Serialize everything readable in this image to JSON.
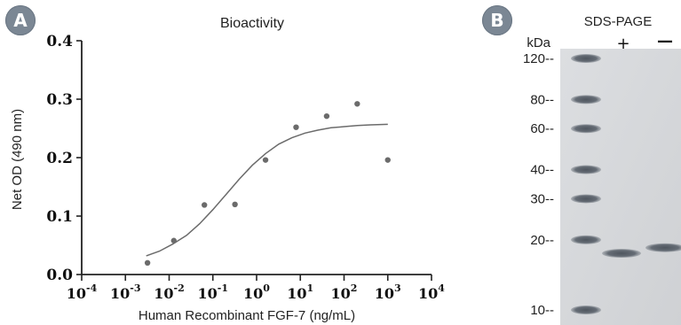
{
  "panels": {
    "a_label": "A",
    "b_label": "B"
  },
  "chart_data": [
    {
      "type": "scatter",
      "title": "Bioactivity",
      "xlabel": "Human Recombinant FGF-7 (ng/mL)",
      "ylabel": "Net OD (490 nm)",
      "xscale": "log",
      "xlim": [
        0.0001,
        10000
      ],
      "ylim": [
        0,
        0.4
      ],
      "x_ticks": [
        {
          "exp": "-4",
          "value": 0.0001
        },
        {
          "exp": "-3",
          "value": 0.001
        },
        {
          "exp": "-2",
          "value": 0.01
        },
        {
          "exp": "-1",
          "value": 0.1
        },
        {
          "exp": "0",
          "value": 1
        },
        {
          "exp": "1",
          "value": 10
        },
        {
          "exp": "2",
          "value": 100
        },
        {
          "exp": "3",
          "value": 1000
        },
        {
          "exp": "4",
          "value": 10000
        }
      ],
      "x_tick_base": "10",
      "y_ticks": [
        "0.0",
        "0.1",
        "0.2",
        "0.3",
        "0.4"
      ],
      "grid": false,
      "points": [
        {
          "x": 0.0032,
          "y": 0.02
        },
        {
          "x": 0.0128,
          "y": 0.058
        },
        {
          "x": 0.064,
          "y": 0.119
        },
        {
          "x": 0.32,
          "y": 0.12
        },
        {
          "x": 1.6,
          "y": 0.196
        },
        {
          "x": 8,
          "y": 0.252
        },
        {
          "x": 40,
          "y": 0.271
        },
        {
          "x": 200,
          "y": 0.292
        },
        {
          "x": 1000,
          "y": 0.196
        }
      ],
      "fit_curve": {
        "x": [
          0.003,
          0.006,
          0.012,
          0.025,
          0.05,
          0.1,
          0.2,
          0.4,
          0.8,
          1.6,
          3.2,
          6.4,
          12.8,
          25,
          50,
          100,
          200,
          400,
          1000
        ],
        "y": [
          0.032,
          0.04,
          0.052,
          0.067,
          0.087,
          0.111,
          0.137,
          0.163,
          0.187,
          0.207,
          0.223,
          0.234,
          0.242,
          0.247,
          0.251,
          0.253,
          0.255,
          0.256,
          0.257
        ]
      },
      "colors": {
        "points": "#6b6b6b",
        "curve": "#6b6b6b",
        "axis": "#222222"
      }
    },
    {
      "type": "gel",
      "title": "SDS-PAGE",
      "unit_label": "kDa",
      "lanes": [
        "+",
        "—"
      ],
      "markers": [
        {
          "label": "120--",
          "kda": 120
        },
        {
          "label": "80--",
          "kda": 80
        },
        {
          "label": "60--",
          "kda": 60
        },
        {
          "label": "40--",
          "kda": 40
        },
        {
          "label": "30--",
          "kda": 30
        },
        {
          "label": "20--",
          "kda": 20
        },
        {
          "label": "10--",
          "kda": 10
        }
      ],
      "sample_bands": [
        {
          "lane": "+",
          "kda": 17.5
        },
        {
          "lane": "—",
          "kda": 18.5
        }
      ],
      "colors": {
        "gel": "#d3d5d8",
        "band": "#5f6670"
      }
    }
  ]
}
